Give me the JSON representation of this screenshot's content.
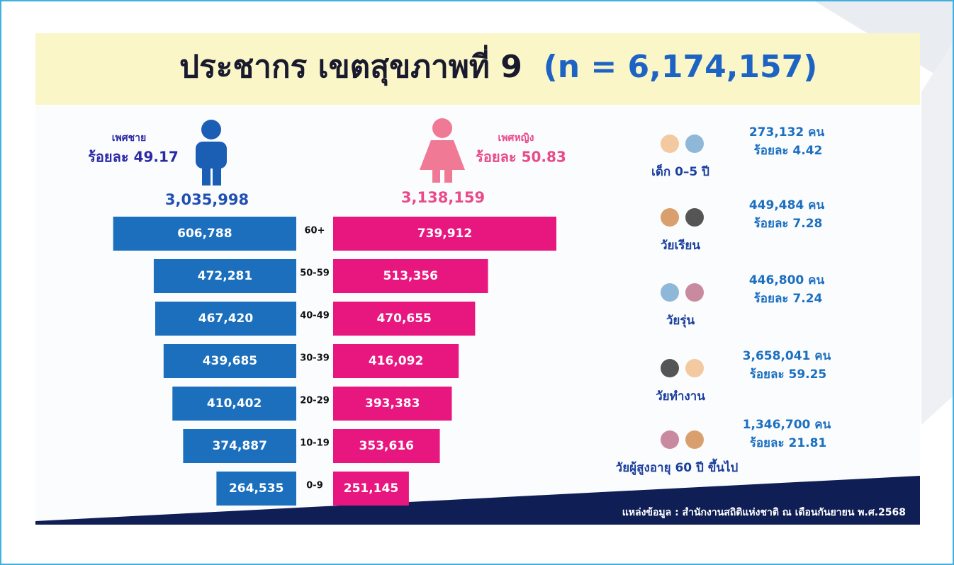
{
  "chart_data": {
    "type": "pyramid",
    "title": "ประชากร เขตสุขภาพที่ 9",
    "title_n": "(n = 6,174,157)",
    "categories": [
      "60+",
      "50-59",
      "40-49",
      "30-39",
      "20-29",
      "10-19",
      "0-9"
    ],
    "series": [
      {
        "name": "เพศชาย",
        "percent_label": "ร้อยละ 49.17",
        "total_label": "3,035,998",
        "color": "#1b6fbd",
        "values": [
          606788,
          472281,
          467420,
          439685,
          410402,
          374887,
          264535
        ],
        "value_labels": [
          "606,788",
          "472,281",
          "467,420",
          "439,685",
          "410,402",
          "374,887",
          "264,535"
        ]
      },
      {
        "name": "เพศหญิง",
        "percent_label": "ร้อยละ 50.83",
        "total_label": "3,138,159",
        "color": "#e8177f",
        "values": [
          739912,
          513356,
          470655,
          416092,
          393383,
          353616,
          251145
        ],
        "value_labels": [
          "739,912",
          "513,356",
          "470,655",
          "416,092",
          "393,383",
          "353,616",
          "251,145"
        ]
      }
    ],
    "groups": [
      {
        "label": "เด็ก 0–5 ปี",
        "count": "273,132 คน",
        "percent": "ร้อยละ 4.42"
      },
      {
        "label": "วัยเรียน",
        "count": "449,484 คน",
        "percent": "ร้อยละ 7.28"
      },
      {
        "label": "วัยรุ่น",
        "count": "446,800 คน",
        "percent": "ร้อยละ 7.24"
      },
      {
        "label": "วัยทำงาน",
        "count": "3,658,041 คน",
        "percent": "ร้อยละ 59.25"
      },
      {
        "label": "วัยผู้สูงอายุ 60 ปี ขึ้นไป",
        "count": "1,346,700 คน",
        "percent": "ร้อยละ 21.81"
      }
    ],
    "source": "แหล่งข้อมูล : สำนักงานสถิติแห่งชาติ ณ เดือนกันยายน พ.ศ.2568"
  }
}
